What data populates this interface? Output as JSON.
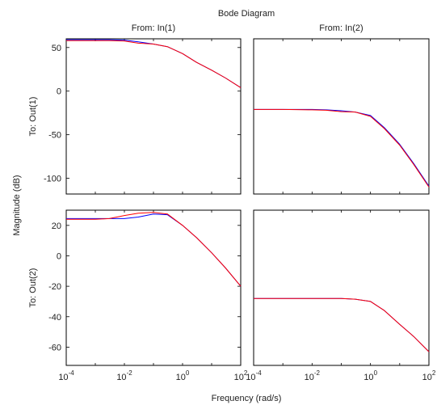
{
  "title": "Bode Diagram",
  "xlabel": "Frequency  (rad/s)",
  "ylabel": "Magnitude (dB)",
  "colors": {
    "series1": "#ff0000",
    "series2": "#0000ff",
    "axes": "#000000",
    "text": "#222222"
  },
  "chart_data": [
    {
      "type": "line",
      "col_label": "From: In(1)",
      "row_label": "To: Out(1)",
      "xscale": "log",
      "xlim": [
        0.0001,
        100
      ],
      "ylim": [
        -118,
        60
      ],
      "yticks": [
        50,
        0,
        -50,
        -100
      ],
      "xtick_exps": [],
      "grid": false,
      "x": [
        0.0001,
        0.001,
        0.003,
        0.01,
        0.03,
        0.1,
        0.3,
        1,
        3,
        10,
        30,
        100
      ],
      "series": [
        {
          "color": "#ff0000",
          "values": [
            58,
            58,
            58,
            57.5,
            55,
            54,
            51,
            43,
            33,
            24,
            15,
            4
          ]
        },
        {
          "color": "#0000ff",
          "values": [
            59,
            59,
            59,
            58.5,
            56.5,
            54,
            51,
            43,
            33,
            24,
            15,
            4
          ]
        }
      ]
    },
    {
      "type": "line",
      "col_label": "From: In(2)",
      "row_label": "",
      "xscale": "log",
      "xlim": [
        0.0001,
        100
      ],
      "ylim": [
        -118,
        60
      ],
      "yticks": [],
      "xtick_exps": [],
      "grid": false,
      "x": [
        0.0001,
        0.001,
        0.01,
        0.03,
        0.1,
        0.3,
        1,
        3,
        10,
        30,
        100
      ],
      "series": [
        {
          "color": "#ff0000",
          "values": [
            -21,
            -21,
            -21.5,
            -22,
            -23.5,
            -24,
            -29,
            -43,
            -62,
            -84,
            -110
          ]
        },
        {
          "color": "#0000ff",
          "values": [
            -21,
            -21,
            -21,
            -21.5,
            -22.5,
            -24,
            -28,
            -42,
            -61,
            -83,
            -109
          ]
        }
      ]
    },
    {
      "type": "line",
      "col_label": "",
      "row_label": "To: Out(2)",
      "xscale": "log",
      "xlim": [
        0.0001,
        100
      ],
      "ylim": [
        -72,
        30
      ],
      "yticks": [
        20,
        0,
        -20,
        -40,
        -60
      ],
      "xtick_exps": [
        -4,
        -2,
        0,
        2
      ],
      "grid": false,
      "x": [
        0.0001,
        0.001,
        0.003,
        0.01,
        0.03,
        0.1,
        0.3,
        1,
        3,
        10,
        30,
        100
      ],
      "series": [
        {
          "color": "#ff0000",
          "values": [
            24,
            24,
            24.5,
            26.5,
            28,
            28.5,
            27.5,
            20,
            12,
            2,
            -8,
            -20
          ]
        },
        {
          "color": "#0000ff",
          "values": [
            24.5,
            24.5,
            24.5,
            24.5,
            25.5,
            27.5,
            27,
            20,
            12,
            2,
            -8,
            -20
          ]
        }
      ]
    },
    {
      "type": "line",
      "col_label": "",
      "row_label": "",
      "xscale": "log",
      "xlim": [
        0.0001,
        100
      ],
      "ylim": [
        -72,
        30
      ],
      "yticks": [],
      "xtick_exps": [
        -4,
        -2,
        0,
        2
      ],
      "grid": false,
      "x": [
        0.0001,
        0.001,
        0.01,
        0.1,
        0.3,
        1,
        3,
        10,
        30,
        100
      ],
      "series": [
        {
          "color": "#ff0000",
          "values": [
            -28,
            -28,
            -28,
            -28,
            -28.5,
            -30,
            -36,
            -45,
            -53,
            -63
          ]
        },
        {
          "color": "#0000ff",
          "values": [
            -28,
            -28,
            -28,
            -28,
            -28.5,
            -30,
            -36,
            -45,
            -53,
            -63
          ]
        }
      ]
    }
  ]
}
